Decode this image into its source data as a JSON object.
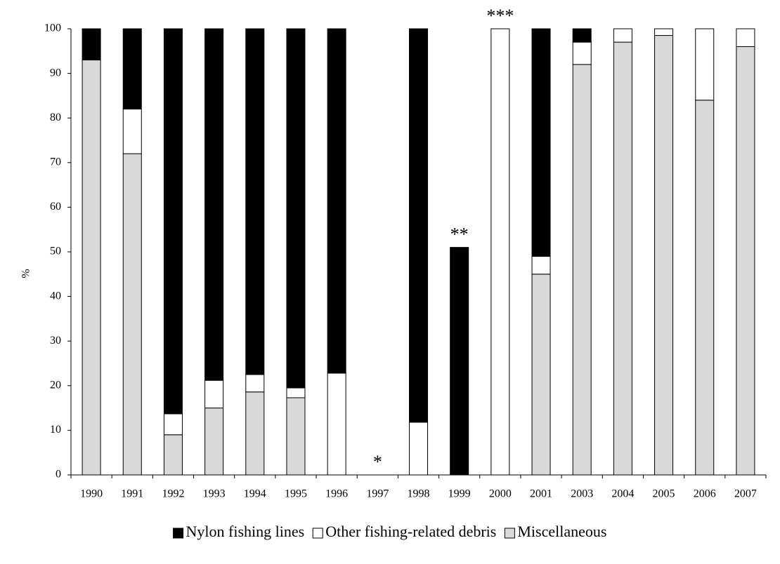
{
  "chart_data": {
    "type": "stacked_bar",
    "y_label": "%",
    "categories": [
      "1990",
      "1991",
      "1992",
      "1993",
      "1994",
      "1995",
      "1996",
      "1997",
      "1998",
      "1999",
      "2000",
      "2001",
      "2003",
      "2004",
      "2005",
      "2006",
      "2007"
    ],
    "series": [
      {
        "name": "Nylon fishing lines",
        "color": "#000000",
        "values": [
          7,
          18,
          86.3,
          78.8,
          77.5,
          80.5,
          77.2,
          0,
          88.2,
          51,
          0,
          51,
          3,
          0,
          0,
          0,
          0
        ]
      },
      {
        "name": "Other fishing-related debris",
        "color": "#ffffff",
        "values": [
          0,
          10,
          4.7,
          6.2,
          3.9,
          2.2,
          22.8,
          0,
          11.8,
          0,
          100,
          4,
          5,
          3,
          1.5,
          16,
          4
        ]
      },
      {
        "name": "Miscellaneous",
        "color": "#d9d9d9",
        "values": [
          93,
          72,
          9,
          15,
          18.6,
          17.3,
          0,
          0,
          0,
          0,
          0,
          45,
          92,
          97,
          98.5,
          84,
          96
        ]
      }
    ],
    "annotations": [
      {
        "text": "*",
        "x": "1997"
      },
      {
        "text": "**",
        "x": "1999"
      },
      {
        "text": "***",
        "x": "2000"
      }
    ],
    "ylim": [
      0,
      100
    ],
    "yticks": [
      0,
      10,
      20,
      30,
      40,
      50,
      60,
      70,
      80,
      90,
      100
    ],
    "grid": false,
    "legend": "bottom"
  }
}
